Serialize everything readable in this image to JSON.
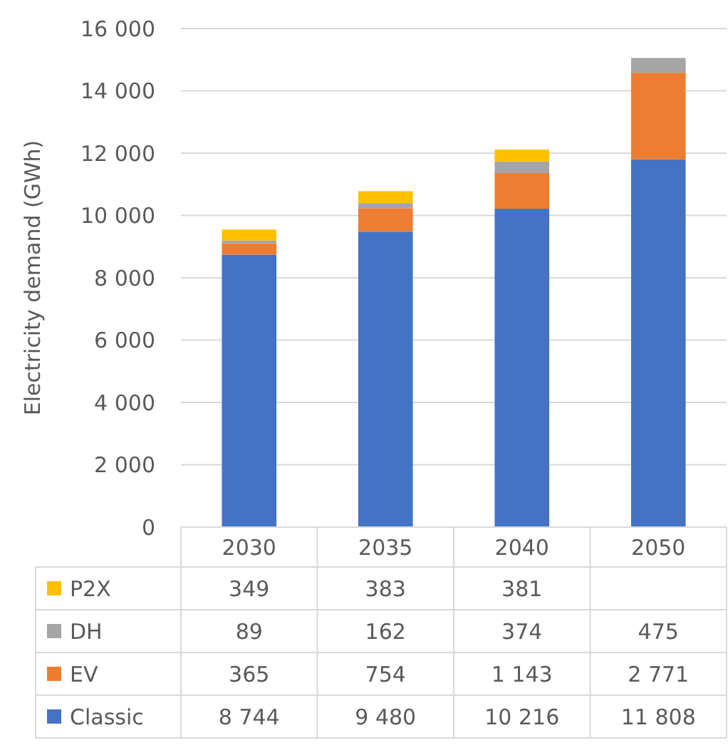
{
  "chart_data": {
    "type": "bar",
    "stacked": true,
    "ylabel": "Electricity demand (GWh)",
    "categories": [
      "2030",
      "2035",
      "2040",
      "2050"
    ],
    "ylim": [
      0,
      16000
    ],
    "yticks": [
      {
        "value": 0,
        "label": "0"
      },
      {
        "value": 2000,
        "label": "2 000"
      },
      {
        "value": 4000,
        "label": "4 000"
      },
      {
        "value": 6000,
        "label": "6 000"
      },
      {
        "value": 8000,
        "label": "8 000"
      },
      {
        "value": 10000,
        "label": "10 000"
      },
      {
        "value": 12000,
        "label": "12 000"
      },
      {
        "value": 14000,
        "label": "14 000"
      },
      {
        "value": 16000,
        "label": "16 000"
      }
    ],
    "grid": "y",
    "legend": "bottom left",
    "series": [
      {
        "name": "Classic",
        "color": "#4472c4",
        "values": [
          8744,
          9480,
          10216,
          11808
        ],
        "value_labels": [
          "8 744",
          "9 480",
          "10 216",
          "11 808"
        ]
      },
      {
        "name": "EV",
        "color": "#ed7d31",
        "values": [
          365,
          754,
          1143,
          2771
        ],
        "value_labels": [
          "365",
          "754",
          "1 143",
          "2 771"
        ]
      },
      {
        "name": "DH",
        "color": "#a5a5a5",
        "values": [
          89,
          162,
          374,
          475
        ],
        "value_labels": [
          "89",
          "162",
          "374",
          "475"
        ]
      },
      {
        "name": "P2X",
        "color": "#ffc000",
        "values": [
          349,
          383,
          381,
          null
        ],
        "value_labels": [
          "349",
          "383",
          "381",
          null
        ]
      }
    ]
  }
}
